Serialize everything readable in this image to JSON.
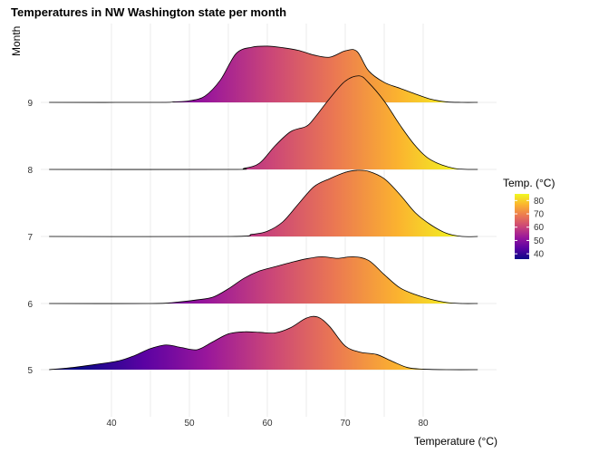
{
  "chart_data": {
    "type": "ridgeline",
    "title": "Temperatures in NW Washington state per month",
    "xlabel": "Temperature (°C)",
    "ylabel": "Month",
    "xlim": [
      32,
      87
    ],
    "x_ticks": [
      40,
      50,
      60,
      70,
      80
    ],
    "categories": [
      "5",
      "6",
      "7",
      "8",
      "9"
    ],
    "grid": true,
    "series": [
      {
        "name": "5",
        "x": [
          32,
          35,
          38,
          41,
          43,
          45,
          47,
          49,
          51,
          53,
          55,
          57,
          59,
          61,
          63,
          65,
          66.5,
          68,
          70,
          72,
          74,
          76,
          78,
          80,
          83,
          87
        ],
        "density": [
          0.0,
          0.04,
          0.1,
          0.17,
          0.27,
          0.4,
          0.47,
          0.42,
          0.38,
          0.53,
          0.68,
          0.72,
          0.71,
          0.7,
          0.8,
          0.98,
          1.0,
          0.82,
          0.45,
          0.33,
          0.29,
          0.16,
          0.04,
          0.01,
          0.0,
          0.0
        ]
      },
      {
        "name": "6",
        "x": [
          32,
          45,
          48,
          51,
          53,
          55,
          57,
          59,
          61,
          63,
          65,
          67,
          69,
          71,
          73,
          75,
          77,
          79,
          81,
          83,
          85,
          87
        ],
        "density": [
          0.0,
          0.0,
          0.02,
          0.07,
          0.12,
          0.28,
          0.48,
          0.62,
          0.7,
          0.78,
          0.85,
          0.89,
          0.86,
          0.89,
          0.82,
          0.55,
          0.3,
          0.17,
          0.08,
          0.02,
          0.0,
          0.0
        ]
      },
      {
        "name": "7",
        "x": [
          32,
          55,
          58,
          60,
          62,
          64,
          66,
          68,
          70,
          71.5,
          73,
          75,
          77,
          79,
          81,
          83,
          85,
          87
        ],
        "density": [
          0.0,
          0.0,
          0.04,
          0.1,
          0.28,
          0.62,
          0.95,
          1.1,
          1.22,
          1.26,
          1.24,
          1.1,
          0.8,
          0.45,
          0.22,
          0.06,
          0.0,
          0.0
        ]
      },
      {
        "name": "8",
        "x": [
          32,
          55,
          57,
          59,
          61,
          63,
          65,
          66,
          68,
          70,
          71.8,
          73,
          75,
          77,
          79,
          81,
          84,
          87
        ],
        "density": [
          0.0,
          0.0,
          0.02,
          0.12,
          0.45,
          0.72,
          0.82,
          0.97,
          1.35,
          1.68,
          1.78,
          1.65,
          1.3,
          0.85,
          0.45,
          0.18,
          0.02,
          0.0
        ]
      },
      {
        "name": "9",
        "x": [
          32,
          46,
          48,
          50,
          52,
          54,
          56,
          58,
          60,
          62,
          64,
          66,
          68,
          70,
          71.5,
          73,
          75,
          77,
          79,
          81,
          83,
          85,
          87
        ],
        "density": [
          0.0,
          0.0,
          0.01,
          0.03,
          0.12,
          0.43,
          0.93,
          1.05,
          1.07,
          1.04,
          0.99,
          0.9,
          0.86,
          0.98,
          0.97,
          0.6,
          0.38,
          0.27,
          0.16,
          0.06,
          0.01,
          0.0,
          0.0
        ]
      }
    ],
    "legend": {
      "title": "Temp. (°C)",
      "placement": "right",
      "range": [
        36,
        85
      ],
      "ticks": [
        40,
        50,
        60,
        70,
        80
      ]
    },
    "colors": [
      "#0d0887",
      "#5b02a3",
      "#9a179b",
      "#cb4678",
      "#eb7852",
      "#fbb32f",
      "#f0f921"
    ]
  }
}
